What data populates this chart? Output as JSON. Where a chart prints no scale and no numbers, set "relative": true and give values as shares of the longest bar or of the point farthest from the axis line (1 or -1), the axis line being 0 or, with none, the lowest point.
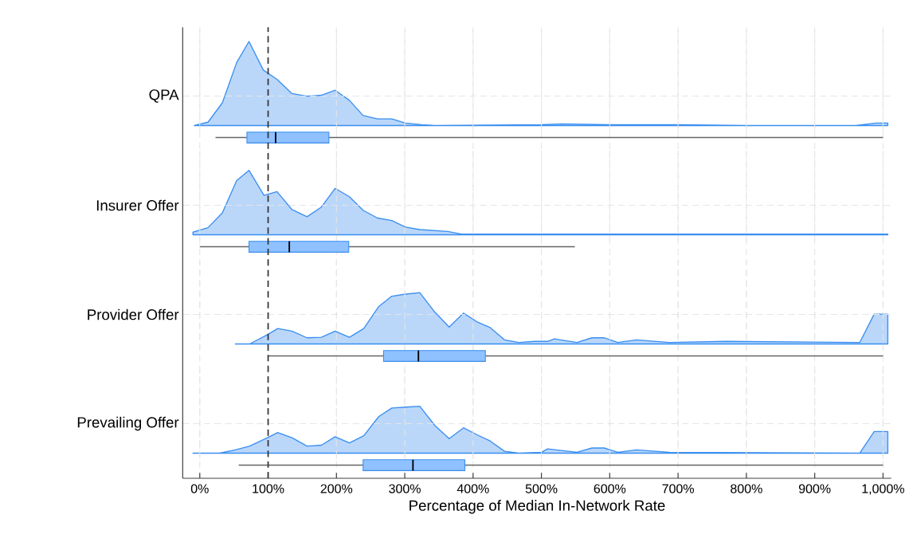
{
  "chart_data": [
    {
      "type": "box",
      "orientation": "horizontal",
      "grid": true,
      "xlabel": "Percentage of Median In-Network Rate",
      "categories": [
        "QPA",
        "Insurer Offer",
        "Provider Offer",
        "Prevailing Offer"
      ],
      "boxes": [
        {
          "low": 23,
          "q1": 69,
          "median": 111,
          "q3": 189,
          "high": 1000
        },
        {
          "low": 0,
          "q1": 72,
          "median": 131,
          "q3": 218,
          "high": 549
        },
        {
          "low": 100,
          "q1": 269,
          "median": 320,
          "q3": 418,
          "high": 1000
        },
        {
          "low": 57,
          "q1": 239,
          "median": 312,
          "q3": 388,
          "high": 1000
        }
      ],
      "color": "#8fc1ff",
      "xlim": [
        -25,
        1012
      ],
      "xticks": [
        {
          "value": 0,
          "label": "0%"
        },
        {
          "value": 100,
          "label": "100%"
        },
        {
          "value": 200,
          "label": "200%"
        },
        {
          "value": 300,
          "label": "300%"
        },
        {
          "value": 400,
          "label": "400%"
        },
        {
          "value": 500,
          "label": "500%"
        },
        {
          "value": 600,
          "label": "600%"
        },
        {
          "value": 700,
          "label": "700%"
        },
        {
          "value": 800,
          "label": "800%"
        },
        {
          "value": 900,
          "label": "900%"
        },
        {
          "value": 1000,
          "label": "1,000%"
        }
      ],
      "ref_lines": [
        {
          "axis": "x",
          "value": 100,
          "color": "#333333",
          "line_style": "dashed"
        }
      ]
    },
    {
      "type": "area",
      "relative": true,
      "grid": "x",
      "tick_labels": false,
      "color": "#3a8ef0",
      "xlim": [
        -25,
        1012
      ],
      "xticks": [
        0,
        100,
        200,
        300,
        400,
        500,
        600,
        700,
        800,
        900,
        1000
      ],
      "x": [
        -8,
        12,
        33,
        54,
        72,
        93,
        113,
        135,
        157,
        178,
        198,
        219,
        239,
        260,
        281,
        301,
        324,
        344,
        500,
        530,
        600,
        700,
        800,
        960,
        990,
        1007
      ],
      "values": [
        0,
        0.04,
        0.27,
        0.75,
        1.0,
        0.66,
        0.55,
        0.38,
        0.35,
        0.36,
        0.42,
        0.3,
        0.12,
        0.08,
        0.08,
        0.03,
        0.01,
        0,
        0.01,
        0.02,
        0.01,
        0.01,
        0,
        0,
        0.03,
        0.03
      ]
    },
    {
      "type": "area",
      "relative": true,
      "grid": "x",
      "tick_labels": false,
      "color": "#3a8ef0",
      "xlim": [
        -25,
        1012
      ],
      "xticks": [
        0,
        100,
        200,
        300,
        400,
        500,
        600,
        700,
        800,
        900,
        1000
      ],
      "x": [
        -10,
        12,
        33,
        54,
        72,
        94,
        113,
        135,
        157,
        178,
        198,
        219,
        239,
        260,
        281,
        301,
        322,
        363,
        383,
        500,
        1000,
        1007
      ],
      "values": [
        0.04,
        0.11,
        0.34,
        0.84,
        1,
        0.61,
        0.67,
        0.39,
        0.28,
        0.43,
        0.72,
        0.59,
        0.38,
        0.26,
        0.22,
        0.12,
        0.08,
        0.05,
        0.01,
        0.01,
        0.01,
        0.01
      ]
    },
    {
      "type": "area",
      "relative": true,
      "grid": "x",
      "tick_labels": false,
      "color": "#3a8ef0",
      "xlim": [
        -25,
        1012
      ],
      "xticks": [
        0,
        100,
        200,
        300,
        400,
        500,
        600,
        700,
        800,
        900,
        1000
      ],
      "x": [
        52,
        73,
        99,
        114,
        135,
        157,
        178,
        198,
        219,
        240,
        262,
        281,
        301,
        322,
        344,
        365,
        386,
        406,
        425,
        446,
        467,
        490,
        509,
        519,
        552,
        574,
        592,
        612,
        639,
        687,
        770,
        966,
        987,
        1007
      ],
      "values": [
        0,
        0,
        0.18,
        0.3,
        0.25,
        0.12,
        0.13,
        0.25,
        0.13,
        0.3,
        0.73,
        0.93,
        0.97,
        1,
        0.62,
        0.33,
        0.6,
        0.43,
        0.32,
        0.08,
        0.03,
        0.05,
        0.05,
        0.1,
        0.03,
        0.12,
        0.12,
        0.03,
        0.08,
        0.03,
        0.05,
        0.03,
        0.58,
        0.58
      ]
    },
    {
      "type": "area",
      "relative": true,
      "grid": "x",
      "tick_labels": false,
      "color": "#3a8ef0",
      "xlim": [
        -25,
        1012
      ],
      "xticks": [
        0,
        100,
        200,
        300,
        400,
        500,
        600,
        700,
        800,
        900,
        1000
      ],
      "x": [
        -10,
        29,
        52,
        73,
        99,
        114,
        135,
        157,
        178,
        198,
        219,
        240,
        262,
        281,
        301,
        322,
        344,
        365,
        386,
        406,
        425,
        446,
        467,
        500,
        509,
        552,
        574,
        592,
        612,
        639,
        687,
        966,
        987,
        1007
      ],
      "values": [
        0,
        0,
        0.07,
        0.15,
        0.33,
        0.44,
        0.33,
        0.15,
        0.17,
        0.35,
        0.22,
        0.37,
        0.78,
        0.96,
        0.98,
        1,
        0.59,
        0.31,
        0.54,
        0.39,
        0.26,
        0.04,
        0,
        0.02,
        0.09,
        0.02,
        0.11,
        0.11,
        0.02,
        0.07,
        0.02,
        0,
        0.46,
        0.46
      ]
    }
  ]
}
